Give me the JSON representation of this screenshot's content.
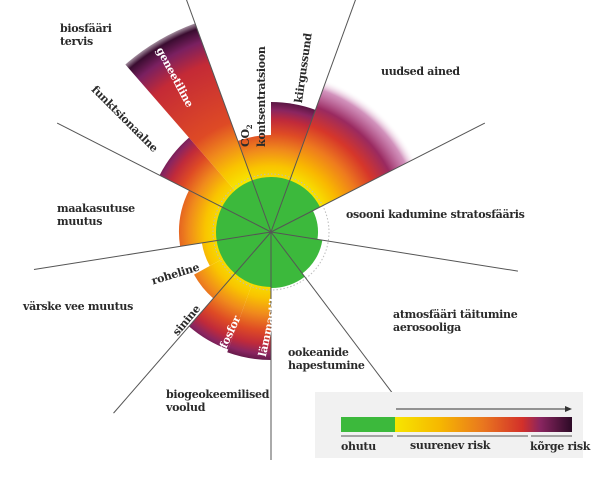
{
  "labels": {
    "biosphere": "biosfääri\ntervis",
    "genetic": "geneetiline",
    "functional": "funktsionaalne",
    "co2": "CO",
    "co2_sub": "2",
    "co2_line2": "kontsentratsioon",
    "radiative": "kiirgussund",
    "novel": "uudsed ained",
    "ozone": "osooni kadumine stratosfääris",
    "land": "maakasutuse\nmuutus",
    "green_water": "roheline",
    "freshwater": "värske vee muutus",
    "blue_water": "sinine",
    "phosphorus": "fosfor",
    "nitrogen": "lämmastik",
    "aerosols": "atmosfääri täitumine\naerosooliga",
    "ocean": "ookeanide\nhapestumine",
    "biogeo": "biogeokeemilised\nvoolud"
  },
  "legend": {
    "safe": "ohutu",
    "increasing": "suurenev risk",
    "high": "kõrge risk"
  },
  "colors": {
    "safe": "#3cb93c",
    "yellow": "#f5e000",
    "orange": "#ef8a1c",
    "red": "#d4312a",
    "purple": "#7a1f5c",
    "dark": "#2c0a26"
  }
}
